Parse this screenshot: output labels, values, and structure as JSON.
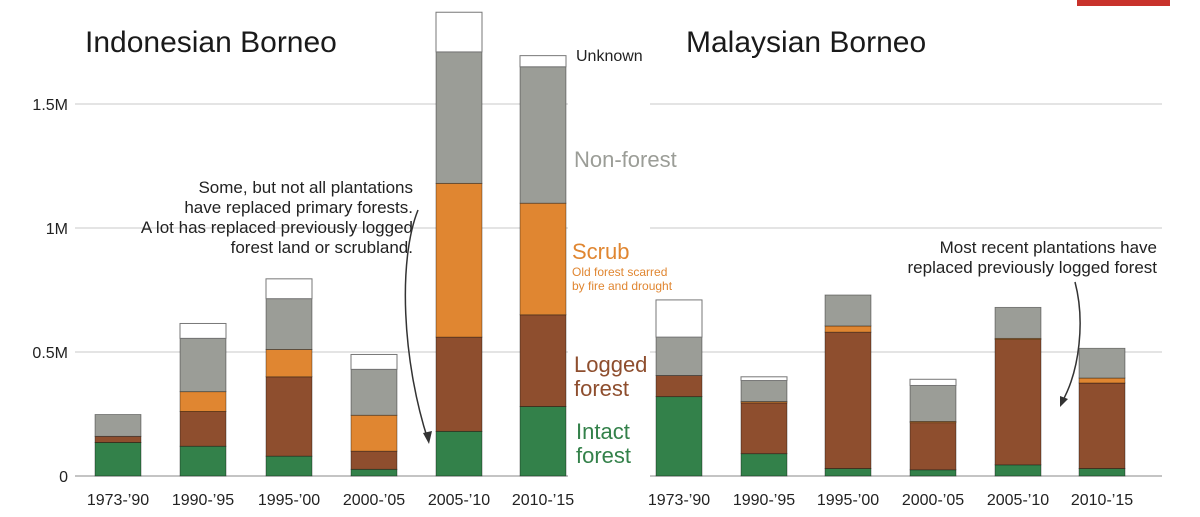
{
  "colors": {
    "intact": "#33814a",
    "logged": "#8e4e2e",
    "scrub": "#e08631",
    "nonforest": "#9b9d97",
    "unknown": "#ffffff",
    "grid": "#c8c8c8",
    "accent_bar": "#c8322b"
  },
  "chart_data": [
    {
      "type": "bar",
      "stacked": true,
      "title": "Indonesian Borneo",
      "categories": [
        "1973-’90",
        "1990-’95",
        "1995-’00",
        "2000-’05",
        "2005-’10",
        "2010-’15"
      ],
      "yticks": [
        {
          "value": 0,
          "label": "0"
        },
        {
          "value": 500000,
          "label": "0.5M"
        },
        {
          "value": 1000000,
          "label": "1M"
        },
        {
          "value": 1500000,
          "label": "1.5M"
        }
      ],
      "ylim": [
        0,
        1900000
      ],
      "series": [
        {
          "key": "intact",
          "values": [
            135000,
            120000,
            80000,
            27000,
            180000,
            280000
          ]
        },
        {
          "key": "logged",
          "values": [
            25000,
            140000,
            320000,
            73000,
            380000,
            370000
          ]
        },
        {
          "key": "scrub",
          "values": [
            0,
            80000,
            110000,
            145000,
            620000,
            450000
          ]
        },
        {
          "key": "nonforest",
          "values": [
            88000,
            215000,
            205000,
            185000,
            530000,
            550000
          ]
        },
        {
          "key": "unknown",
          "values": [
            0,
            60000,
            80000,
            60000,
            160000,
            45000
          ]
        }
      ],
      "annotation": [
        "Some, but not all plantations",
        "have replaced primary forests.",
        "A lot has replaced previously logged",
        "forest land or scrubland."
      ],
      "legend": {
        "unknown": "Unknown",
        "nonforest": "Non-forest",
        "scrub": "Scrub",
        "scrub_note": [
          "Old forest scarred",
          "by fire and drought"
        ],
        "logged": [
          "Logged",
          "forest"
        ],
        "intact": [
          "Intact",
          "forest"
        ]
      }
    },
    {
      "type": "bar",
      "stacked": true,
      "title": "Malaysian Borneo",
      "categories": [
        "1973-’90",
        "1990-’95",
        "1995-’00",
        "2000-’05",
        "2005-’10",
        "2010-’15"
      ],
      "yticks": [
        {
          "value": 0,
          "label": ""
        },
        {
          "value": 500000,
          "label": ""
        },
        {
          "value": 1000000,
          "label": ""
        },
        {
          "value": 1500000,
          "label": ""
        }
      ],
      "ylim": [
        0,
        1900000
      ],
      "series": [
        {
          "key": "intact",
          "values": [
            320000,
            90000,
            30000,
            25000,
            45000,
            30000
          ]
        },
        {
          "key": "logged",
          "values": [
            85000,
            205000,
            550000,
            190000,
            505000,
            345000
          ]
        },
        {
          "key": "scrub",
          "values": [
            0,
            5000,
            25000,
            5000,
            5000,
            20000
          ]
        },
        {
          "key": "nonforest",
          "values": [
            155000,
            85000,
            125000,
            145000,
            125000,
            120000
          ]
        },
        {
          "key": "unknown",
          "values": [
            150000,
            15000,
            0,
            25000,
            0,
            0
          ]
        }
      ],
      "annotation": [
        "Most recent plantations have",
        "replaced previously logged forest"
      ]
    }
  ]
}
